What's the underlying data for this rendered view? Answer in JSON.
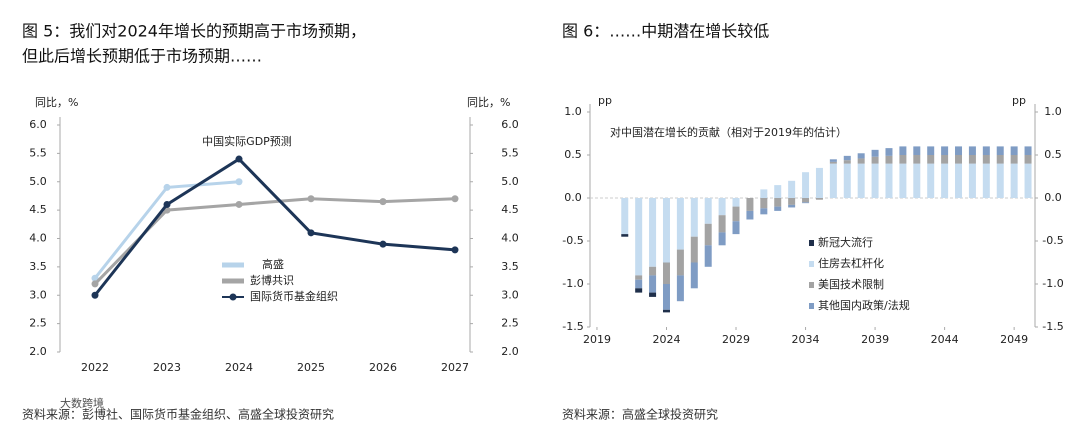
{
  "chart_data": [
    {
      "type": "line",
      "title": [
        "图 5：我们对2024年增长的预期高于市场预期，",
        "但此后增长预期低于市场预期……"
      ],
      "annotation": "中国实际GDP预测",
      "ylabel": "同比，%",
      "y2label": "同比，%",
      "categories": [
        "2022",
        "2023",
        "2024",
        "2025",
        "2026",
        "2027"
      ],
      "series": [
        {
          "name": "高盛",
          "color": "#b7d3ea",
          "values": [
            3.3,
            4.9,
            5.0,
            null,
            null,
            null
          ]
        },
        {
          "name": "彭博共识",
          "color": "#a5a5a5",
          "values": [
            3.2,
            4.5,
            4.6,
            4.7,
            4.65,
            4.7
          ]
        },
        {
          "name": "国际货币基金组织",
          "color": "#1d3557",
          "values": [
            3.0,
            4.6,
            5.4,
            4.1,
            3.9,
            3.8
          ]
        }
      ],
      "ylim": [
        2,
        6
      ],
      "yticks": [
        {
          "value": 2,
          "label": "2.0"
        },
        {
          "value": 2.5,
          "label": "2.5"
        },
        {
          "value": 3,
          "label": "3.0"
        },
        {
          "value": 3.5,
          "label": "3.5"
        },
        {
          "value": 4,
          "label": "4.0"
        },
        {
          "value": 4.5,
          "label": "4.5"
        },
        {
          "value": 5,
          "label": "5.0"
        },
        {
          "value": 5.5,
          "label": "5.5"
        },
        {
          "value": 6,
          "label": "6.0"
        }
      ],
      "y2lim": [
        2,
        6
      ],
      "y2ticks": [
        {
          "value": 2,
          "label": "2.0"
        },
        {
          "value": 2.5,
          "label": "2.5"
        },
        {
          "value": 3,
          "label": "3.0"
        },
        {
          "value": 3.5,
          "label": "3.5"
        },
        {
          "value": 4,
          "label": "4.0"
        },
        {
          "value": 4.5,
          "label": "4.5"
        },
        {
          "value": 5,
          "label": "5.0"
        },
        {
          "value": 5.5,
          "label": "5.5"
        },
        {
          "value": 6,
          "label": "6.0"
        }
      ],
      "source": "资料来源：彭博社、国际货币基金组织、高盛全球投资研究",
      "watermark": "大数跨境"
    },
    {
      "type": "bar",
      "stacked": true,
      "title": [
        "图 6：……中期潜在增长较低"
      ],
      "annotation": "对中国潜在增长的贡献（相对于2019年的估计）",
      "ylabel": "pp",
      "y2label": "pp",
      "x": [
        2021,
        2022,
        2023,
        2024,
        2025,
        2026,
        2027,
        2028,
        2029,
        2030,
        2031,
        2032,
        2033,
        2034,
        2035,
        2036,
        2037,
        2038,
        2039,
        2040,
        2041,
        2042,
        2043,
        2044,
        2045,
        2046,
        2047,
        2048,
        2049,
        2050
      ],
      "series": [
        {
          "name": "新冠大流行",
          "color": "#1f2f4a",
          "values": [
            -0.03,
            -0.05,
            -0.05,
            -0.03,
            0,
            0,
            0,
            0,
            0,
            0,
            0,
            0,
            0,
            0,
            0,
            0,
            0,
            0,
            0,
            0,
            0,
            0,
            0,
            0,
            0,
            0,
            0,
            0,
            0,
            0
          ]
        },
        {
          "name": "住房去杠杆化",
          "color": "#c5dcf0",
          "values": [
            -0.42,
            -0.9,
            -0.8,
            -0.75,
            -0.6,
            -0.45,
            -0.3,
            -0.2,
            -0.1,
            0,
            0.1,
            0.15,
            0.2,
            0.3,
            0.35,
            0.4,
            0.4,
            0.4,
            0.4,
            0.4,
            0.4,
            0.4,
            0.4,
            0.4,
            0.4,
            0.4,
            0.4,
            0.4,
            0.4,
            0.4
          ]
        },
        {
          "name": "美国技术限制",
          "color": "#a3a3a3",
          "values": [
            0,
            -0.05,
            -0.1,
            -0.25,
            -0.3,
            -0.3,
            -0.25,
            -0.2,
            -0.17,
            -0.15,
            -0.12,
            -0.1,
            -0.08,
            -0.05,
            -0.02,
            0.02,
            0.04,
            0.06,
            0.08,
            0.09,
            0.1,
            0.1,
            0.1,
            0.1,
            0.1,
            0.1,
            0.1,
            0.1,
            0.1,
            0.1
          ]
        },
        {
          "name": "其他国内政策/法规",
          "color": "#7f9cc4",
          "values": [
            0,
            -0.1,
            -0.2,
            -0.3,
            -0.3,
            -0.3,
            -0.25,
            -0.15,
            -0.15,
            -0.1,
            -0.07,
            -0.05,
            -0.03,
            -0.01,
            0,
            0.03,
            0.05,
            0.06,
            0.08,
            0.09,
            0.1,
            0.1,
            0.1,
            0.1,
            0.1,
            0.1,
            0.1,
            0.1,
            0.1,
            0.1
          ]
        }
      ],
      "xlim": [
        2018.5,
        2050.5
      ],
      "xticks": [
        2019,
        2024,
        2029,
        2034,
        2039,
        2044,
        2049
      ],
      "ylim": [
        -1.5,
        1
      ],
      "yticks": [
        {
          "value": 1,
          "label": "1.0"
        },
        {
          "value": 0.5,
          "label": "0.5"
        },
        {
          "value": 0,
          "label": "0.0"
        },
        {
          "value": -0.5,
          "label": "-0.5"
        },
        {
          "value": -1,
          "label": "-1.0"
        },
        {
          "value": -1.5,
          "label": "-1.5"
        }
      ],
      "y2lim": [
        -1.5,
        1
      ],
      "y2ticks": [
        {
          "value": 1,
          "label": "1.0"
        },
        {
          "value": 0.5,
          "label": "0.5"
        },
        {
          "value": 0,
          "label": "0.0"
        },
        {
          "value": -0.5,
          "label": "-0.5"
        },
        {
          "value": -1,
          "label": "-1.0"
        },
        {
          "value": -1.5,
          "label": "-1.5"
        }
      ],
      "source": "资料来源：高盛全球投资研究"
    }
  ]
}
